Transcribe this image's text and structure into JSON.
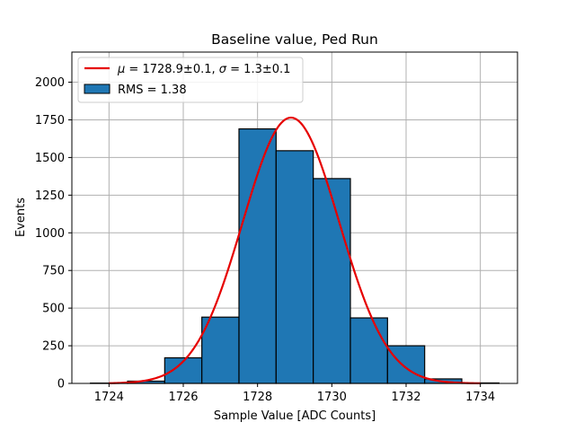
{
  "chart_data": {
    "type": "bar",
    "title": "Baseline value, Ped Run",
    "xlabel": "Sample Value [ADC Counts]",
    "ylabel": "Events",
    "xlim": [
      1723,
      1735
    ],
    "ylim": [
      0,
      2200
    ],
    "xticks": [
      1724,
      1726,
      1728,
      1730,
      1732,
      1734
    ],
    "yticks": [
      0,
      250,
      500,
      750,
      1000,
      1250,
      1500,
      1750,
      2000
    ],
    "grid": true,
    "legend_position": "top-left",
    "bins": [
      {
        "x0": 1723.5,
        "x1": 1724.5,
        "value": 2
      },
      {
        "x0": 1724.5,
        "x1": 1725.5,
        "value": 15
      },
      {
        "x0": 1725.5,
        "x1": 1726.5,
        "value": 170
      },
      {
        "x0": 1726.5,
        "x1": 1727.5,
        "value": 440
      },
      {
        "x0": 1727.5,
        "x1": 1728.5,
        "value": 1690
      },
      {
        "x0": 1728.5,
        "x1": 1729.5,
        "value": 1545
      },
      {
        "x0": 1729.5,
        "x1": 1730.5,
        "value": 1360
      },
      {
        "x0": 1730.5,
        "x1": 1731.5,
        "value": 435
      },
      {
        "x0": 1731.5,
        "x1": 1732.5,
        "value": 250
      },
      {
        "x0": 1732.5,
        "x1": 1733.5,
        "value": 30
      },
      {
        "x0": 1733.5,
        "x1": 1734.5,
        "value": 3
      }
    ],
    "fit": {
      "type": "gaussian",
      "mu": 1728.9,
      "sigma": 1.3,
      "amplitude": 1765,
      "x_range": [
        1724,
        1734
      ]
    },
    "series": [
      {
        "name": "$\\mu = 1728.9 \\pm 0.1$, $\\sigma = 1.3 \\pm 0.1$",
        "kind": "line",
        "color": "#e60000"
      },
      {
        "name": "RMS = 1.38",
        "kind": "bar",
        "color": "#1f77b4"
      }
    ],
    "legend": {
      "fit_label_prefix_mu": "μ",
      "fit_label_mid": " = 1728.9±0.1, ",
      "fit_label_prefix_sigma": "σ",
      "fit_label_end": " = 1.3±0.1",
      "hist_label": "RMS = 1.38"
    }
  },
  "colors": {
    "bar_fill": "#1f77b4",
    "bar_edge": "#000000",
    "fit_line": "#e60000",
    "grid": "#b0b0b0"
  }
}
